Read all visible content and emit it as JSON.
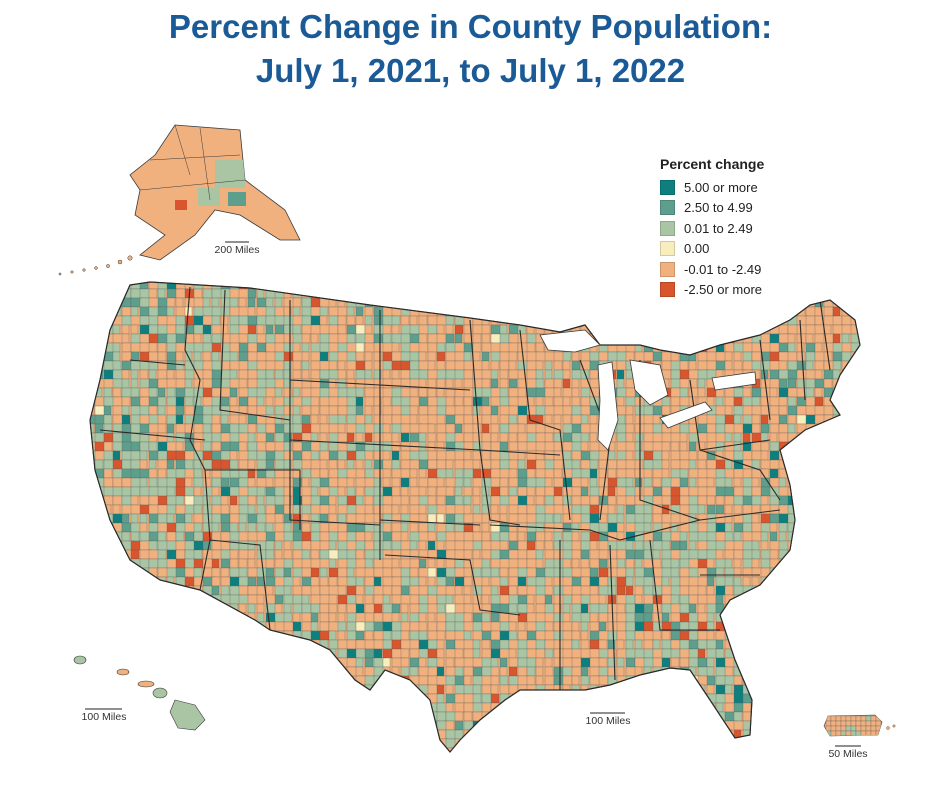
{
  "title": {
    "line1": "Percent Change in County Population:",
    "line2": "July 1, 2021, to July 1, 2022"
  },
  "legend": {
    "title": "Percent change",
    "items": [
      {
        "label": "5.00 or more",
        "color": "#0e7f7f"
      },
      {
        "label": "2.50 to 4.99",
        "color": "#5e9e8c"
      },
      {
        "label": "0.01 to 2.49",
        "color": "#a9c5a4"
      },
      {
        "label": "0.00",
        "color": "#f7edbd"
      },
      {
        "label": "-0.01 to -2.49",
        "color": "#f0b17f"
      },
      {
        "label": "-2.50 or more",
        "color": "#d8552d"
      }
    ]
  },
  "scale_bars": {
    "alaska": "200 Miles",
    "hawaii": "100 Miles",
    "conus": "100 Miles",
    "puerto_rico": "50 Miles"
  },
  "colors": {
    "title": "#1a5a96",
    "border": "#3a3a3a"
  }
}
